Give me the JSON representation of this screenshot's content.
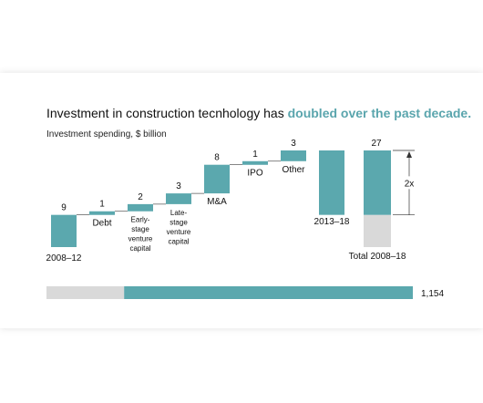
{
  "title": {
    "prefix": "Investment in construction tecnhology has ",
    "highlight": "doubled over the past decade."
  },
  "subtitle": "Investment spending, $ billion",
  "colors": {
    "teal": "#5ba8ae",
    "grey": "#d9d9d9",
    "highlight": "#5aa5ad",
    "text": "#111111"
  },
  "chart_data": {
    "type": "bar",
    "subtype": "waterfall",
    "categories": [
      "2008–12",
      "Debt",
      "Early-stage venture capital",
      "Late-stage venture capital",
      "M&A",
      "IPO",
      "Other",
      "2013–18",
      "Total 2008–18"
    ],
    "category_labels": [
      [
        "2008–12"
      ],
      [
        "Debt"
      ],
      [
        "Early-",
        "stage",
        "venture",
        "capital"
      ],
      [
        "Late-",
        "stage",
        "venture",
        "capital"
      ],
      [
        "M&A"
      ],
      [
        "IPO"
      ],
      [
        "Other"
      ],
      [
        "2013–18"
      ],
      [
        "Total 2008–18"
      ]
    ],
    "values": [
      9,
      1,
      2,
      3,
      8,
      1,
      3,
      18,
      27
    ],
    "value_labels": [
      "9",
      "1",
      "2",
      "3",
      "8",
      "1",
      "3",
      "",
      "27"
    ],
    "total_segments": [
      {
        "name": "2008–12",
        "value": 9
      },
      {
        "name": "2013–18",
        "value": 18
      }
    ],
    "annotation": "2x",
    "comparison_bar": {
      "value": 1154,
      "label": "1,154",
      "grey_share": 0.1
    },
    "ylim": [
      0,
      27
    ],
    "xlabel": "",
    "ylabel": ""
  }
}
